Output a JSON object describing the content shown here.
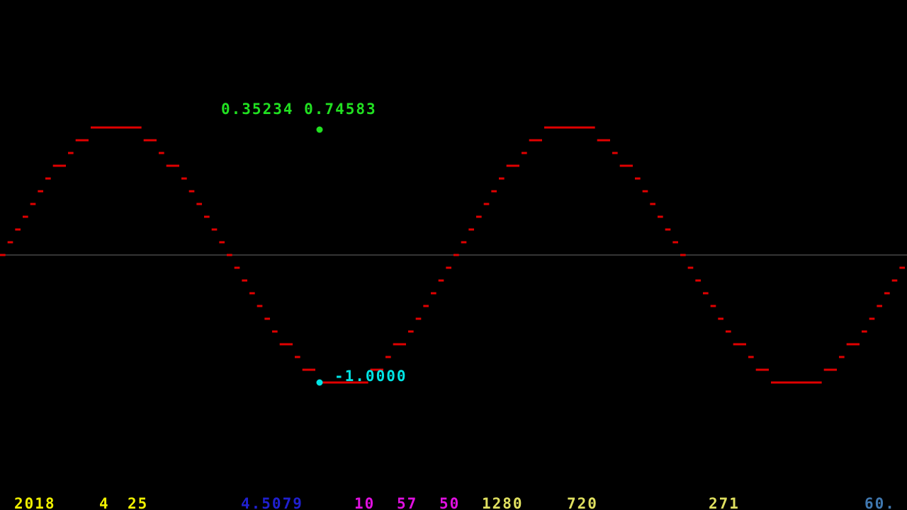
{
  "chart_data": {
    "type": "line",
    "title": "",
    "xlabel": "",
    "ylabel": "",
    "xlim": [
      -2.0,
      2.0
    ],
    "ylim": [
      -1.0,
      1.0
    ],
    "grid": false,
    "baseline": 0,
    "function": "sin",
    "periods_visible": 2,
    "series": [
      {
        "color": "#e00000",
        "samples_per_period": 60,
        "y_quantization": 0.1
      }
    ]
  },
  "readouts": {
    "cursor_value_top": "0.35234 0.74583",
    "cursor_value_bottom": "-1.0000"
  },
  "status_bar": {
    "year": "2018",
    "month": "4",
    "day": "25",
    "value": "4.5079",
    "hour": "10",
    "minute": "57",
    "second": "50",
    "screen_width": "1280",
    "screen_height": "720",
    "counter": "271",
    "fps": "60."
  },
  "colors": {
    "background": "#000000",
    "curve": "#e00000",
    "axis": "#6a6a6a",
    "top_marker": "#21e021",
    "bottom_marker": "#00e5e5",
    "date": "#f0f000",
    "value": "#2020d0",
    "time": "#e010e0",
    "dimensions": "#e0e060",
    "fps": "#4078b0"
  }
}
